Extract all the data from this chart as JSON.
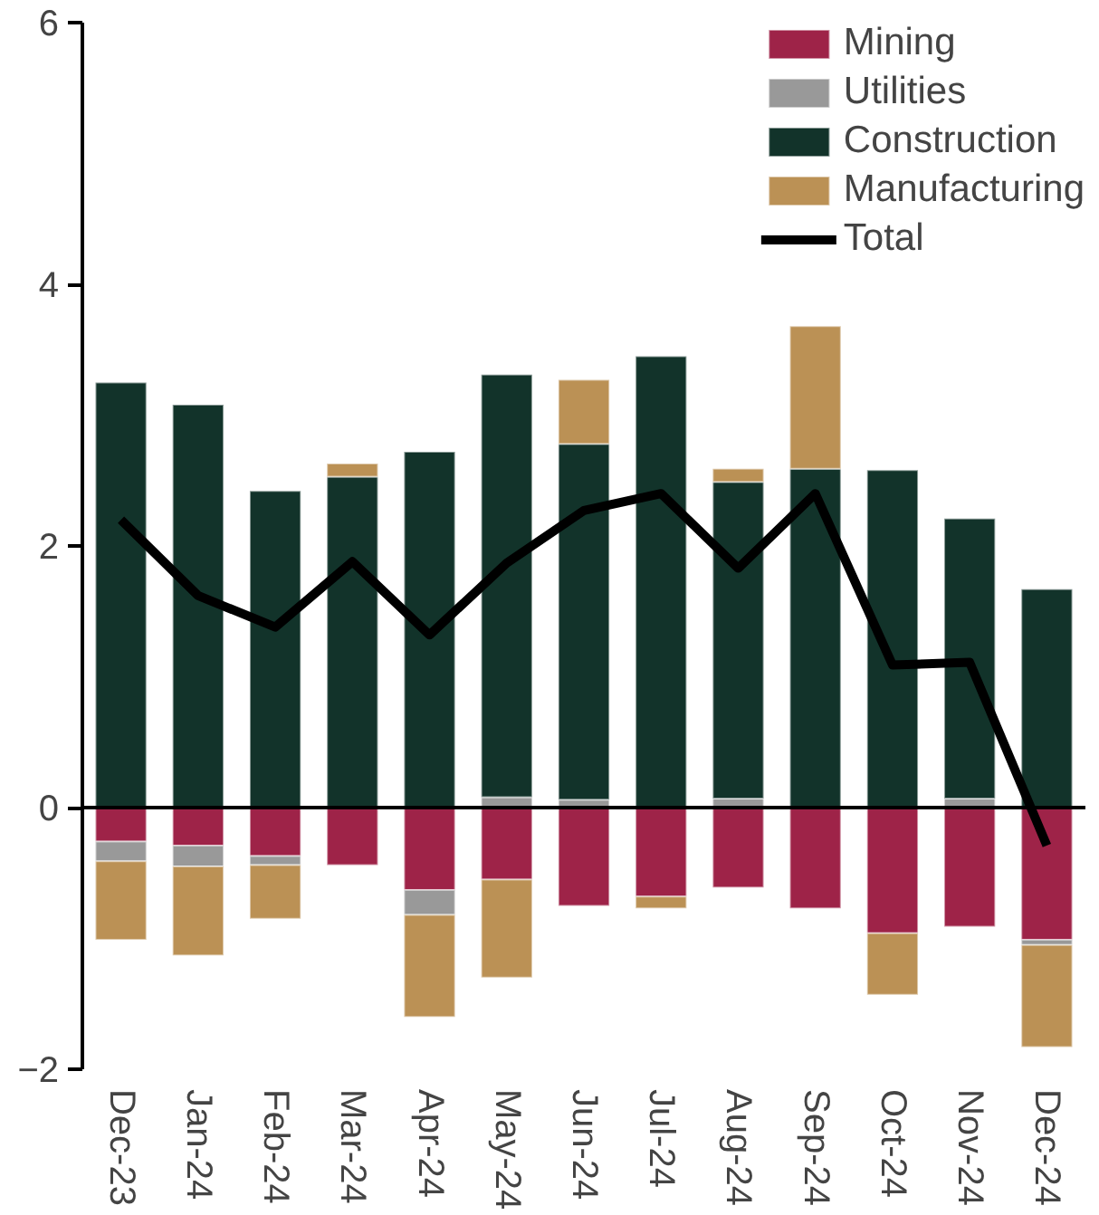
{
  "chart_data": {
    "type": "bar",
    "stacked": true,
    "categories": [
      "Dec-23",
      "Jan-24",
      "Feb-24",
      "Mar-24",
      "Apr-24",
      "May-24",
      "Jun-24",
      "Jul-24",
      "Aug-24",
      "Sep-24",
      "Oct-24",
      "Nov-24",
      "Dec-24"
    ],
    "series": [
      {
        "name": "Mining",
        "color": "#9e2348",
        "values": [
          -0.26,
          -0.29,
          -0.37,
          -0.44,
          -0.63,
          -0.55,
          -0.75,
          -0.68,
          -0.61,
          -0.77,
          -0.96,
          -0.91,
          -1.01
        ]
      },
      {
        "name": "Utilities",
        "color": "#999999",
        "values": [
          -0.15,
          -0.16,
          -0.07,
          null,
          -0.19,
          0.08,
          0.06,
          null,
          0.07,
          null,
          null,
          0.07,
          -0.04
        ]
      },
      {
        "name": "Construction",
        "color": "#12332a",
        "values": [
          3.25,
          3.08,
          2.42,
          2.53,
          2.72,
          3.23,
          2.72,
          3.45,
          2.42,
          2.59,
          2.58,
          2.14,
          1.67
        ]
      },
      {
        "name": "Manufacturing",
        "color": "#bb9155",
        "values": [
          -0.6,
          -0.68,
          -0.41,
          0.1,
          -0.78,
          -0.75,
          0.49,
          -0.09,
          0.1,
          1.09,
          -0.47,
          null,
          -0.78
        ]
      },
      {
        "name": "Total",
        "type": "line",
        "color": "#000000",
        "values": [
          2.2,
          1.62,
          1.38,
          1.88,
          1.32,
          1.87,
          2.27,
          2.4,
          1.83,
          2.4,
          1.09,
          1.11,
          -0.29
        ]
      }
    ],
    "ref_lines": [
      {
        "axis": "y",
        "value": 0,
        "color": "#000000"
      }
    ],
    "ylim": [
      -2,
      6
    ],
    "yticks": [
      -2,
      0,
      2,
      4,
      6
    ],
    "grid": false,
    "legend": "top right"
  }
}
